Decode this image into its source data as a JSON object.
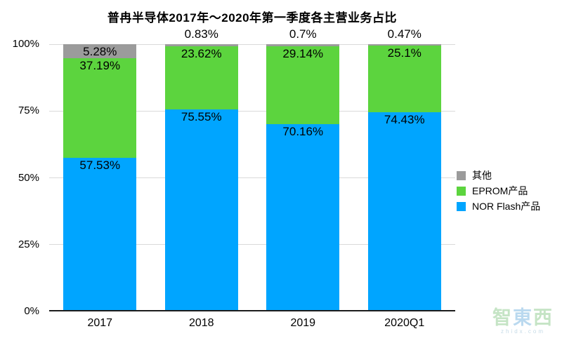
{
  "chart_data": {
    "type": "bar",
    "stacked": true,
    "title": "普冉半导体2017年～2020年第一季度各主营业务占比",
    "categories": [
      "2017",
      "2018",
      "2019",
      "2020Q1"
    ],
    "series": [
      {
        "name": "NOR Flash产品",
        "color": "#00A5FF",
        "values": [
          57.53,
          75.55,
          70.16,
          74.43
        ],
        "labels": [
          "57.53%",
          "75.55%",
          "70.16%",
          "74.43%"
        ]
      },
      {
        "name": "EPROM产品",
        "color": "#5CD43E",
        "values": [
          37.19,
          23.62,
          29.14,
          25.1
        ],
        "labels": [
          "37.19%",
          "23.62%",
          "29.14%",
          "25.1%"
        ]
      },
      {
        "name": "其他",
        "color": "#9B9B9B",
        "values": [
          5.28,
          0.83,
          0.7,
          0.47
        ],
        "labels": [
          "5.28%",
          "0.83%",
          "0.7%",
          "0.47%"
        ]
      }
    ],
    "legend_order": [
      2,
      1,
      0
    ],
    "legend_position": "right",
    "xlabel": "",
    "ylabel": "",
    "ylim": [
      0,
      100
    ],
    "yticks": [
      0,
      25,
      50,
      75,
      100
    ],
    "ytick_labels": [
      "0%",
      "25%",
      "50%",
      "75%",
      "100%"
    ],
    "grid": true,
    "grid_color": "#D9D9D9",
    "axis_color": "#1C1C1C",
    "label_color": "#000000"
  },
  "watermark": {
    "text": "智東西",
    "subtext": "zhidx.com",
    "char_colors": [
      "rgba(150,205,150,0.55)",
      "rgba(130,185,225,0.55)",
      "rgba(150,205,150,0.55)"
    ],
    "sub_color": "rgba(160,195,215,0.6)"
  }
}
